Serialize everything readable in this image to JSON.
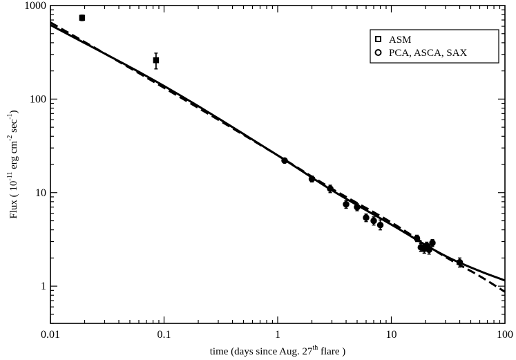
{
  "chart_data": {
    "type": "scatter",
    "xscale": "log",
    "yscale": "log",
    "xlim": [
      0.01,
      100
    ],
    "ylim": [
      0.4,
      1000
    ],
    "x_ticks": [
      {
        "value": 0.01,
        "label": "0.01"
      },
      {
        "value": 0.1,
        "label": "0.1"
      },
      {
        "value": 1,
        "label": "1"
      },
      {
        "value": 10,
        "label": "10"
      },
      {
        "value": 100,
        "label": "100"
      }
    ],
    "y_ticks": [
      {
        "value": 1,
        "label": "1"
      },
      {
        "value": 10,
        "label": "10"
      },
      {
        "value": 100,
        "label": "100"
      },
      {
        "value": 1000,
        "label": "1000"
      }
    ],
    "xlabel": {
      "before": "time (days since Aug. 27",
      "sup": "th",
      "after": " flare )"
    },
    "ylabel": {
      "p1": "Flux ( 10",
      "s1": "-11",
      "p2": " erg cm",
      "s2": "-2",
      "p3": " sec",
      "s3": "-1",
      "p4": ")"
    },
    "legend": {
      "position": "top-right",
      "entries": [
        {
          "label": "ASM",
          "marker": "square"
        },
        {
          "label": "PCA, ASCA, SAX",
          "marker": "circle"
        }
      ]
    },
    "series": [
      {
        "name": "ASM",
        "marker": "square",
        "points": [
          {
            "x": 0.019,
            "y": 740,
            "ylo": 690,
            "yhi": 790
          },
          {
            "x": 0.085,
            "y": 260,
            "ylo": 210,
            "yhi": 310
          }
        ]
      },
      {
        "name": "PCA, ASCA, SAX",
        "marker": "circle",
        "points": [
          {
            "x": 1.15,
            "y": 22,
            "ylo": 21,
            "yhi": 23
          },
          {
            "x": 2.0,
            "y": 14,
            "ylo": 13,
            "yhi": 15
          },
          {
            "x": 2.9,
            "y": 11,
            "ylo": 10,
            "yhi": 12
          },
          {
            "x": 4.0,
            "y": 7.5,
            "ylo": 6.8,
            "yhi": 8.2
          },
          {
            "x": 5.0,
            "y": 7.0,
            "ylo": 6.4,
            "yhi": 7.6
          },
          {
            "x": 6.0,
            "y": 5.4,
            "ylo": 4.9,
            "yhi": 5.9
          },
          {
            "x": 7.0,
            "y": 5.0,
            "ylo": 4.5,
            "yhi": 5.5
          },
          {
            "x": 8.0,
            "y": 4.5,
            "ylo": 4.0,
            "yhi": 5.1
          },
          {
            "x": 16.8,
            "y": 3.25,
            "ylo": 3.0,
            "yhi": 3.5
          },
          {
            "x": 18.2,
            "y": 2.6,
            "ylo": 2.35,
            "yhi": 2.85
          },
          {
            "x": 19.5,
            "y": 2.5,
            "ylo": 2.25,
            "yhi": 2.75
          },
          {
            "x": 20.5,
            "y": 2.7,
            "ylo": 2.45,
            "yhi": 2.95
          },
          {
            "x": 21.5,
            "y": 2.45,
            "ylo": 2.2,
            "yhi": 2.7
          },
          {
            "x": 23.0,
            "y": 2.9,
            "ylo": 2.65,
            "yhi": 3.15
          },
          {
            "x": 40.0,
            "y": 1.8,
            "ylo": 1.6,
            "yhi": 2.0
          }
        ]
      }
    ],
    "curves": [
      {
        "style": "solid",
        "points": [
          [
            0.01,
            620
          ],
          [
            0.1,
            138
          ],
          [
            1,
            25
          ],
          [
            3,
            10.6
          ],
          [
            10,
            4.55
          ],
          [
            30,
            2.1
          ],
          [
            60,
            1.45
          ],
          [
            100,
            1.15
          ]
        ]
      },
      {
        "style": "dashed",
        "points": [
          [
            0.01,
            660
          ],
          [
            0.1,
            132
          ],
          [
            1,
            25
          ],
          [
            3,
            11.0
          ],
          [
            10,
            4.8
          ],
          [
            30,
            2.05
          ],
          [
            60,
            1.28
          ],
          [
            100,
            0.87
          ]
        ]
      }
    ]
  }
}
